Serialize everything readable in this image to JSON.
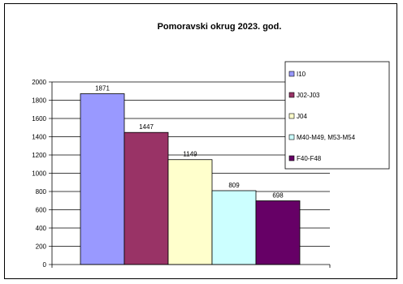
{
  "chart_data": {
    "type": "bar",
    "title": "Pomoravski okrug 2023. god.",
    "xlabel": "",
    "ylabel": "",
    "ylim": [
      0,
      2000
    ],
    "yticks": [
      0,
      200,
      400,
      600,
      800,
      1000,
      1200,
      1400,
      1600,
      1800,
      2000
    ],
    "grid": true,
    "legend_position": "right",
    "series": [
      {
        "name": "I10",
        "value": 1871,
        "label": "1871",
        "color": "#9999FF"
      },
      {
        "name": "J02-J03",
        "value": 1447,
        "label": "1447",
        "color": "#993366"
      },
      {
        "name": "J04",
        "value": 1149,
        "label": "1149",
        "color": "#FFFFCC"
      },
      {
        "name": "M40-M49, M53-M54",
        "value": 809,
        "label": "809",
        "color": "#CCFFFF"
      },
      {
        "name": "F40-F48",
        "value": 698,
        "label": "698",
        "color": "#660066"
      }
    ]
  }
}
